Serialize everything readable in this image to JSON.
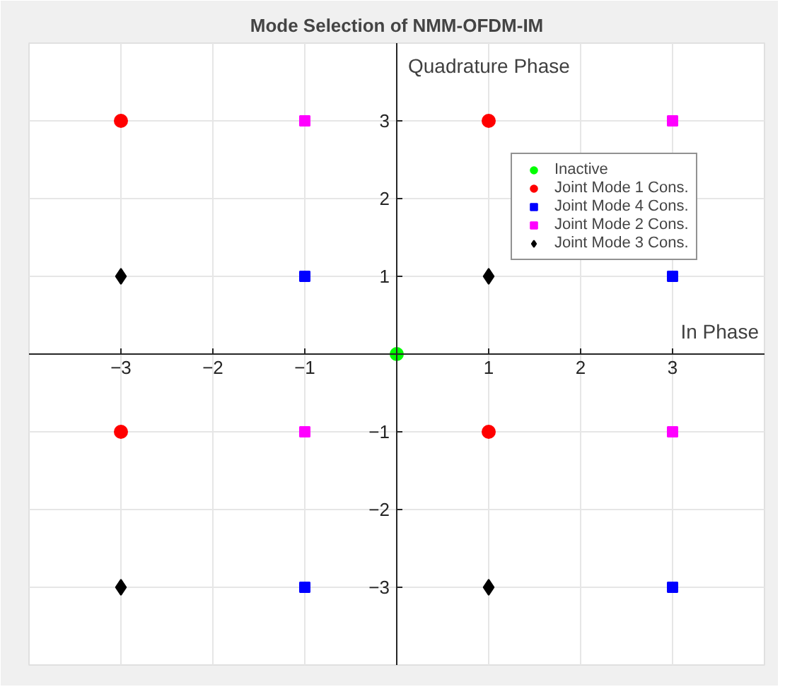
{
  "chart_data": {
    "type": "scatter",
    "title": "Mode Selection of NMM-OFDM-IM",
    "xlabel": "In Phase",
    "ylabel": "Quadrature Phase",
    "series": [
      {
        "name": "Inactive",
        "color": "#00ff00",
        "marker": "circle",
        "x": [
          0
        ],
        "values": [
          0
        ]
      },
      {
        "name": "Joint Mode 1 Cons.",
        "color": "#ff0000",
        "marker": "circle",
        "x": [
          -3,
          1,
          -3,
          1
        ],
        "values": [
          3,
          3,
          -1,
          -1
        ]
      },
      {
        "name": "Joint Mode 4 Cons.",
        "color": "#0000ff",
        "marker": "square",
        "x": [
          -1,
          3,
          -1,
          3
        ],
        "values": [
          1,
          1,
          -3,
          -3
        ]
      },
      {
        "name": "Joint Mode 2 Cons.",
        "color": "#ff00ff",
        "marker": "square",
        "x": [
          -1,
          3,
          -1,
          3
        ],
        "values": [
          3,
          3,
          -1,
          -1
        ]
      },
      {
        "name": "Joint Mode 3 Cons.",
        "color": "#000000",
        "marker": "diamond",
        "x": [
          -3,
          1,
          -3,
          1
        ],
        "values": [
          1,
          1,
          -3,
          -3
        ]
      }
    ],
    "xlim": [
      -4,
      4
    ],
    "ylim": [
      -4,
      4
    ],
    "xticks": [
      -3,
      -2,
      -1,
      1,
      2,
      3
    ],
    "yticks": [
      -3,
      -2,
      -1,
      1,
      2,
      3
    ],
    "grid": true,
    "legend": "top right"
  }
}
